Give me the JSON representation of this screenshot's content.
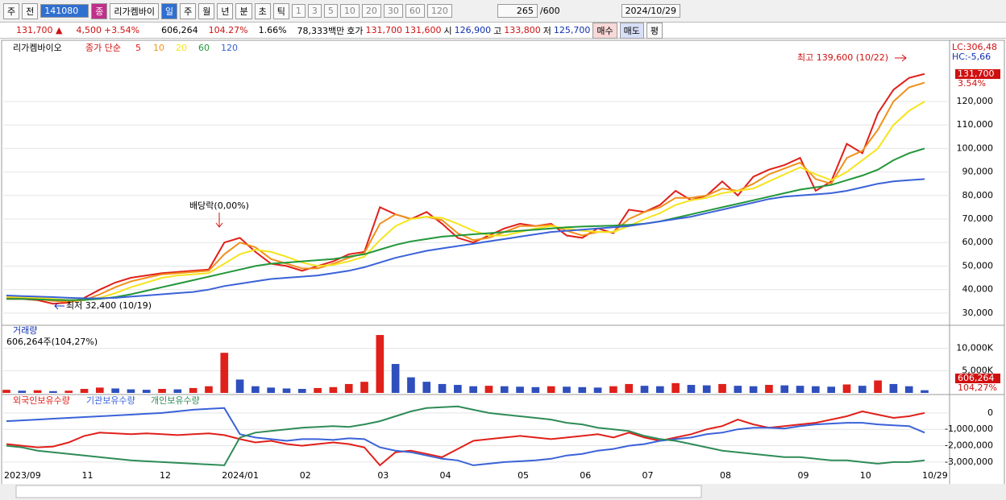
{
  "toolbar": {
    "items": [
      "주",
      "전",
      "141080",
      "종",
      "리가켐바이",
      "일",
      "주",
      "월",
      "년",
      "분",
      "초",
      "틱",
      "1",
      "3",
      "5",
      "10",
      "20",
      "30",
      "60",
      "120",
      "265",
      "/600",
      "2024/10/29"
    ]
  },
  "quote_bar": {
    "items": [
      "131,700 ▲",
      "4,500",
      "+3.54%",
      "606,264",
      "104.27%",
      "1.66%",
      "78,333백만",
      "호가",
      "131,700",
      "131,600",
      "시",
      "126,900",
      "고",
      "133,800",
      "저",
      "125,700",
      "매수",
      "매도",
      "평"
    ]
  },
  "chart_data": [
    {
      "type": "line",
      "title": "리가켐바이오",
      "subtitle": "종가 단순",
      "high_label": "최고 139,600 (10/22)",
      "low_label": "최저 32,400 (10/19)",
      "event_label": "배당락(0,00%)",
      "lc_label": "LC:306,48",
      "hc_label": "HC:-5,66",
      "last_label": "131,700",
      "change_label": "3.54%",
      "ylim": [
        25500,
        142600
      ],
      "yticks": [
        {
          "value": 30000,
          "label": "30,000"
        },
        {
          "value": 40000,
          "label": "40,000"
        },
        {
          "value": 50000,
          "label": "50,000"
        },
        {
          "value": 60000,
          "label": "60,000"
        },
        {
          "value": 70000,
          "label": "70,000"
        },
        {
          "value": 80000,
          "label": "80,000"
        },
        {
          "value": 90000,
          "label": "90,000"
        },
        {
          "value": 100000,
          "label": "100,000"
        },
        {
          "value": 110000,
          "label": "110,000"
        },
        {
          "value": 120000,
          "label": "120,000"
        }
      ],
      "grid": true,
      "series": [
        {
          "name": "5",
          "color": "#e0201a",
          "values": [
            36000,
            36000,
            35500,
            34000,
            34500,
            36500,
            40000,
            43000,
            45000,
            46000,
            47000,
            47500,
            48000,
            48500,
            60000,
            62000,
            56000,
            51000,
            50000,
            48000,
            50000,
            52000,
            55000,
            56000,
            75000,
            72000,
            70000,
            73000,
            68000,
            62000,
            60000,
            63000,
            66000,
            68000,
            67000,
            68000,
            63000,
            62000,
            66000,
            64000,
            74000,
            73000,
            76000,
            82000,
            78000,
            80000,
            86000,
            80000,
            88000,
            91000,
            93000,
            96000,
            82000,
            86000,
            102000,
            98000,
            115000,
            125000,
            130000,
            131700
          ]
        },
        {
          "name": "10",
          "color": "#f0901c",
          "values": [
            36500,
            36200,
            36000,
            35200,
            34800,
            35500,
            38000,
            41000,
            43500,
            45000,
            46500,
            47000,
            47500,
            48000,
            55000,
            60000,
            58000,
            53000,
            51000,
            49000,
            49000,
            51000,
            53500,
            55500,
            68000,
            72000,
            70000,
            71000,
            69500,
            64000,
            61000,
            62000,
            64500,
            67000,
            67000,
            67500,
            65000,
            63000,
            64500,
            64500,
            70000,
            73000,
            75000,
            79000,
            79000,
            80000,
            83000,
            82000,
            85000,
            89000,
            91500,
            94000,
            87000,
            85000,
            96000,
            99000,
            108000,
            120000,
            126000,
            128000
          ]
        },
        {
          "name": "20",
          "color": "#f5e41c",
          "values": [
            37000,
            36800,
            36500,
            36000,
            35500,
            35500,
            36500,
            38500,
            41000,
            43000,
            45000,
            46000,
            46500,
            47000,
            51000,
            55000,
            57000,
            56000,
            54000,
            51500,
            50000,
            50500,
            52000,
            54000,
            61000,
            67000,
            70000,
            71000,
            70500,
            68000,
            65000,
            63000,
            63000,
            64500,
            66000,
            67000,
            66000,
            65000,
            64500,
            64500,
            67000,
            70000,
            72500,
            76000,
            78000,
            79000,
            81000,
            82000,
            83000,
            86000,
            89000,
            92000,
            89000,
            86500,
            90000,
            95000,
            100000,
            110000,
            116000,
            120000
          ]
        },
        {
          "name": "60",
          "color": "#22963a",
          "values": [
            36000,
            36000,
            35800,
            35600,
            35500,
            35600,
            36000,
            36800,
            38000,
            39500,
            41000,
            42500,
            44000,
            45500,
            47000,
            48500,
            50000,
            51000,
            51500,
            52000,
            52500,
            53000,
            54000,
            55000,
            57000,
            59000,
            60500,
            61500,
            62500,
            63000,
            63500,
            64000,
            64500,
            65000,
            65500,
            66000,
            66500,
            66800,
            67000,
            67200,
            67500,
            68000,
            69000,
            70500,
            72000,
            73500,
            75000,
            76500,
            78000,
            79500,
            81000,
            82500,
            83500,
            84500,
            86500,
            88500,
            91000,
            95000,
            98000,
            100000
          ]
        },
        {
          "name": "120",
          "color": "#3a62d8",
          "values": [
            37500,
            37200,
            37000,
            36800,
            36500,
            36300,
            36300,
            36500,
            37000,
            37500,
            38000,
            38500,
            39000,
            40000,
            41500,
            42500,
            43500,
            44500,
            45000,
            45500,
            46000,
            47000,
            48000,
            49500,
            51500,
            53500,
            55000,
            56500,
            57500,
            58500,
            59500,
            60500,
            61500,
            62500,
            63500,
            64500,
            65000,
            65500,
            66000,
            66500,
            67000,
            68000,
            69000,
            70000,
            71000,
            72500,
            74000,
            75500,
            77000,
            78500,
            79500,
            80000,
            80500,
            81000,
            82000,
            83500,
            85000,
            86000,
            86500,
            87000
          ]
        }
      ]
    },
    {
      "type": "bar",
      "title": "거래량",
      "subtitle": "606,264주(104,27%)",
      "last_label": "606,264",
      "change_label": "104,27%",
      "ylim": [
        0,
        15000
      ],
      "yticks": [
        {
          "value": 5000,
          "label": "5,000K"
        },
        {
          "value": 10000,
          "label": "10,000K"
        }
      ],
      "grid": true,
      "up_color": "#e0201a",
      "down_color": "#2f4fbd",
      "values": [
        700,
        500,
        600,
        400,
        500,
        900,
        1200,
        1000,
        800,
        700,
        900,
        800,
        1100,
        1500,
        9000,
        3000,
        1500,
        1200,
        1000,
        900,
        1100,
        1300,
        2000,
        2500,
        13000,
        6500,
        3500,
        2500,
        2000,
        1800,
        1500,
        1600,
        1500,
        1400,
        1300,
        1500,
        1400,
        1300,
        1200,
        1500,
        2000,
        1600,
        1500,
        2200,
        1800,
        1700,
        2000,
        1600,
        1500,
        1800,
        1700,
        1600,
        1500,
        1400,
        1900,
        1600,
        2800,
        2000,
        1500,
        606.264
      ]
    },
    {
      "type": "line",
      "ylim": [
        -3400000,
        1030000
      ],
      "yticks": [
        0,
        {
          "value": -1000000,
          "label": "-1,000,000"
        },
        {
          "value": -2000000,
          "label": "-2,000,000"
        },
        {
          "value": -3000000,
          "label": "-3,000,000"
        }
      ],
      "grid": true,
      "categories": [
        "2023/09",
        null,
        null,
        null,
        null,
        "11",
        null,
        null,
        null,
        null,
        "12",
        null,
        null,
        null,
        "2024/01",
        null,
        null,
        null,
        null,
        "02",
        null,
        null,
        null,
        null,
        "03",
        null,
        null,
        null,
        "04",
        null,
        null,
        null,
        null,
        "05",
        null,
        null,
        null,
        "06",
        null,
        null,
        null,
        "07",
        null,
        null,
        null,
        null,
        "08",
        null,
        null,
        null,
        null,
        "09",
        null,
        null,
        null,
        "10",
        null,
        null,
        null,
        "10/29"
      ],
      "series": [
        {
          "name": "외국인보유수량",
          "color": "#e0201a",
          "values": [
            -1900000,
            -2000000,
            -2100000,
            -2050000,
            -1800000,
            -1400000,
            -1200000,
            -1250000,
            -1300000,
            -1250000,
            -1300000,
            -1350000,
            -1300000,
            -1250000,
            -1350000,
            -1600000,
            -1800000,
            -1700000,
            -1900000,
            -2000000,
            -1900000,
            -1800000,
            -1900000,
            -2100000,
            -3200000,
            -2400000,
            -2300000,
            -2500000,
            -2700000,
            -2200000,
            -1700000,
            -1600000,
            -1500000,
            -1400000,
            -1500000,
            -1600000,
            -1500000,
            -1400000,
            -1300000,
            -1500000,
            -1200000,
            -1500000,
            -1700000,
            -1500000,
            -1300000,
            -1000000,
            -800000,
            -400000,
            -700000,
            -900000,
            -800000,
            -700000,
            -600000,
            -400000,
            -200000,
            100000,
            -100000,
            -300000,
            -200000,
            0
          ]
        },
        {
          "name": "기관보유수량",
          "color": "#3a62d8",
          "values": [
            -500000,
            -450000,
            -400000,
            -350000,
            -300000,
            -250000,
            -200000,
            -150000,
            -100000,
            -50000,
            0,
            100000,
            200000,
            250000,
            300000,
            -1300000,
            -1500000,
            -1600000,
            -1700000,
            -1600000,
            -1600000,
            -1650000,
            -1550000,
            -1600000,
            -2100000,
            -2300000,
            -2400000,
            -2600000,
            -2800000,
            -2900000,
            -3200000,
            -3100000,
            -3000000,
            -2950000,
            -2900000,
            -2800000,
            -2600000,
            -2500000,
            -2300000,
            -2200000,
            -2000000,
            -1900000,
            -1700000,
            -1600000,
            -1500000,
            -1300000,
            -1200000,
            -1000000,
            -900000,
            -900000,
            -950000,
            -800000,
            -700000,
            -650000,
            -600000,
            -600000,
            -700000,
            -750000,
            -800000,
            -1200000
          ]
        },
        {
          "name": "개인보유수량",
          "color": "#2e8b57",
          "values": [
            -2000000,
            -2100000,
            -2300000,
            -2400000,
            -2500000,
            -2600000,
            -2700000,
            -2800000,
            -2900000,
            -2950000,
            -3000000,
            -3050000,
            -3100000,
            -3150000,
            -3200000,
            -1500000,
            -1200000,
            -1100000,
            -1000000,
            -900000,
            -850000,
            -800000,
            -850000,
            -700000,
            -500000,
            -200000,
            100000,
            300000,
            350000,
            400000,
            200000,
            0,
            -100000,
            -200000,
            -300000,
            -400000,
            -600000,
            -700000,
            -900000,
            -1000000,
            -1100000,
            -1400000,
            -1600000,
            -1700000,
            -1900000,
            -2100000,
            -2300000,
            -2400000,
            -2500000,
            -2600000,
            -2700000,
            -2700000,
            -2800000,
            -2900000,
            -2900000,
            -3000000,
            -3100000,
            -3000000,
            -3000000,
            -2900000
          ]
        }
      ]
    }
  ]
}
